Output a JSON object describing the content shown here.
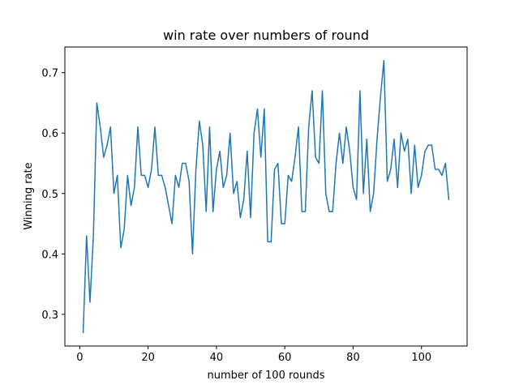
{
  "chart_data": {
    "type": "line",
    "title": "win rate over numbers of round",
    "xlabel": "number of 100 rounds",
    "ylabel": "Winning rate",
    "xlim": [
      -4.35,
      113.35
    ],
    "ylim": [
      0.2475,
      0.7425
    ],
    "xticks": [
      0,
      20,
      40,
      60,
      80,
      100
    ],
    "yticks": [
      0.3,
      0.4,
      0.5,
      0.6,
      0.7
    ],
    "ytick_labels": [
      "0.3",
      "0.4",
      "0.5",
      "0.6",
      "0.7"
    ],
    "grid": false,
    "line_color": "#1f77b4",
    "series": [
      {
        "x": [
          1,
          2,
          3,
          4,
          5,
          6,
          7,
          8,
          9,
          10,
          11,
          12,
          13,
          14,
          15,
          16,
          17,
          18,
          19,
          20,
          21,
          22,
          23,
          24,
          25,
          26,
          27,
          28,
          29,
          30,
          31,
          32,
          33,
          34,
          35,
          36,
          37,
          38,
          39,
          40,
          41,
          42,
          43,
          44,
          45,
          46,
          47,
          48,
          49,
          50,
          51,
          52,
          53,
          54,
          55,
          56,
          57,
          58,
          59,
          60,
          61,
          62,
          63,
          64,
          65,
          66,
          67,
          68,
          69,
          70,
          71,
          72,
          73,
          74,
          75,
          76,
          77,
          78,
          79,
          80,
          81,
          82,
          83,
          84,
          85,
          86,
          87,
          88,
          89,
          90,
          91,
          92,
          93,
          94,
          95,
          96,
          97,
          98,
          99,
          100,
          101,
          102,
          103,
          104,
          105,
          106,
          107,
          108
        ],
        "values": [
          0.27,
          0.43,
          0.32,
          0.43,
          0.65,
          0.61,
          0.56,
          0.58,
          0.61,
          0.5,
          0.53,
          0.41,
          0.44,
          0.53,
          0.48,
          0.51,
          0.61,
          0.53,
          0.53,
          0.51,
          0.54,
          0.61,
          0.53,
          0.53,
          0.51,
          0.48,
          0.45,
          0.53,
          0.51,
          0.55,
          0.55,
          0.52,
          0.4,
          0.54,
          0.62,
          0.58,
          0.47,
          0.61,
          0.47,
          0.54,
          0.57,
          0.51,
          0.53,
          0.6,
          0.5,
          0.52,
          0.46,
          0.49,
          0.57,
          0.46,
          0.6,
          0.64,
          0.56,
          0.64,
          0.42,
          0.42,
          0.54,
          0.55,
          0.45,
          0.45,
          0.53,
          0.52,
          0.56,
          0.61,
          0.47,
          0.47,
          0.61,
          0.67,
          0.56,
          0.55,
          0.67,
          0.5,
          0.47,
          0.47,
          0.55,
          0.6,
          0.55,
          0.61,
          0.57,
          0.51,
          0.49,
          0.67,
          0.5,
          0.59,
          0.47,
          0.5,
          0.59,
          0.66,
          0.72,
          0.52,
          0.54,
          0.59,
          0.51,
          0.6,
          0.57,
          0.59,
          0.5,
          0.58,
          0.51,
          0.53,
          0.57,
          0.58,
          0.58,
          0.54,
          0.54,
          0.53,
          0.55,
          0.49
        ]
      }
    ]
  }
}
